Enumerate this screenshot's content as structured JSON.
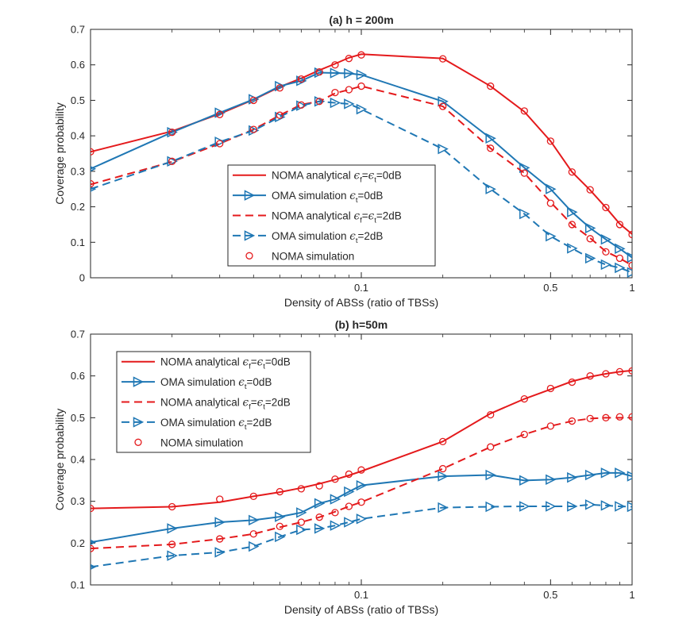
{
  "chart_data": [
    {
      "type": "line",
      "title": "(a) h = 200m",
      "xlabel": "Density of ABSs (ratio of TBSs)",
      "ylabel": "Coverage probability",
      "xscale": "log",
      "xlim": [
        0.01,
        1
      ],
      "ylim": [
        0,
        0.7
      ],
      "xticks": [
        0.1,
        0.5,
        1
      ],
      "xtick_labels": [
        "0.1",
        "0.5",
        "1"
      ],
      "yticks": [
        0,
        0.1,
        0.2,
        0.3,
        0.4,
        0.5,
        0.6,
        0.7
      ],
      "ytick_labels": [
        "0",
        "0.1",
        "0.2",
        "0.3",
        "0.4",
        "0.5",
        "0.6",
        "0.7"
      ],
      "legend_position": "center-right",
      "series": [
        {
          "name": "NOMA analytical",
          "legend_label": "NOMA analytical ϵ_f=ϵ_t=0dB",
          "legend_main": "NOMA analytical ",
          "legend_tail": "=0dB",
          "legend_sub1": "f",
          "legend_sub2": "t",
          "color": "#e41a1c",
          "style": "solid",
          "marker": "none",
          "x": [
            0.01,
            0.02,
            0.03,
            0.04,
            0.05,
            0.06,
            0.07,
            0.08,
            0.09,
            0.1,
            0.2,
            0.3,
            0.4,
            0.5,
            0.6,
            0.7,
            0.8,
            0.9,
            1.0
          ],
          "y": [
            0.355,
            0.413,
            0.462,
            0.502,
            0.538,
            0.562,
            0.585,
            0.603,
            0.62,
            0.63,
            0.618,
            0.54,
            0.468,
            0.385,
            0.298,
            0.247,
            0.198,
            0.152,
            0.123
          ]
        },
        {
          "name": "OMA simulation 0dB",
          "legend_label": "OMA simulation ϵ_t=0dB",
          "legend_main": "OMA simulation ",
          "legend_tail": "=0dB",
          "legend_sub1": "t",
          "color": "#1f77b4",
          "style": "solid",
          "marker": "triangle-right",
          "x": [
            0.01,
            0.02,
            0.03,
            0.04,
            0.05,
            0.06,
            0.07,
            0.08,
            0.09,
            0.1,
            0.2,
            0.3,
            0.4,
            0.5,
            0.6,
            0.7,
            0.8,
            0.9,
            1.0
          ],
          "y": [
            0.307,
            0.41,
            0.465,
            0.503,
            0.54,
            0.555,
            0.578,
            0.577,
            0.576,
            0.572,
            0.497,
            0.393,
            0.31,
            0.25,
            0.185,
            0.14,
            0.108,
            0.082,
            0.057
          ]
        },
        {
          "name": "NOMA analytical 2dB",
          "legend_label": "NOMA analytical ϵ_f=ϵ_t=2dB",
          "legend_main": "NOMA analytical ",
          "legend_tail": "=2dB",
          "legend_sub1": "f",
          "legend_sub2": "t",
          "color": "#e41a1c",
          "style": "dashed",
          "marker": "none",
          "x": [
            0.01,
            0.02,
            0.03,
            0.04,
            0.05,
            0.06,
            0.07,
            0.08,
            0.09,
            0.1,
            0.2,
            0.3,
            0.4,
            0.5,
            0.6,
            0.7,
            0.8,
            0.9,
            1.0
          ],
          "y": [
            0.263,
            0.327,
            0.378,
            0.418,
            0.458,
            0.488,
            0.497,
            0.52,
            0.53,
            0.54,
            0.483,
            0.365,
            0.295,
            0.213,
            0.15,
            0.112,
            0.074,
            0.055,
            0.035
          ]
        },
        {
          "name": "OMA simulation 2dB",
          "legend_label": "OMA simulation ϵ_t=2dB",
          "legend_main": "OMA simulation ",
          "legend_tail": "=2dB",
          "legend_sub1": "t",
          "color": "#1f77b4",
          "style": "dashed",
          "marker": "triangle-right",
          "x": [
            0.01,
            0.02,
            0.03,
            0.04,
            0.05,
            0.06,
            0.07,
            0.08,
            0.09,
            0.1,
            0.2,
            0.3,
            0.4,
            0.5,
            0.6,
            0.7,
            0.8,
            0.9,
            1.0
          ],
          "y": [
            0.25,
            0.328,
            0.383,
            0.415,
            0.453,
            0.485,
            0.497,
            0.493,
            0.49,
            0.475,
            0.363,
            0.25,
            0.18,
            0.117,
            0.083,
            0.055,
            0.037,
            0.028,
            0.015
          ]
        },
        {
          "name": "NOMA simulation",
          "legend_label": "NOMA simulation",
          "legend_main": "NOMA simulation",
          "legend_tail": "",
          "color": "#e41a1c",
          "style": "none",
          "marker": "circle",
          "x": [
            0.01,
            0.02,
            0.03,
            0.04,
            0.05,
            0.06,
            0.07,
            0.08,
            0.09,
            0.1,
            0.2,
            0.3,
            0.4,
            0.5,
            0.6,
            0.7,
            0.8,
            0.9,
            1.0,
            0.01,
            0.02,
            0.03,
            0.04,
            0.05,
            0.06,
            0.07,
            0.08,
            0.09,
            0.1,
            0.2,
            0.3,
            0.4,
            0.5,
            0.6,
            0.7,
            0.8,
            0.9,
            1.0
          ],
          "y": [
            0.355,
            0.41,
            0.46,
            0.5,
            0.535,
            0.56,
            0.58,
            0.6,
            0.618,
            0.628,
            0.617,
            0.54,
            0.47,
            0.385,
            0.298,
            0.248,
            0.198,
            0.15,
            0.122,
            0.265,
            0.328,
            0.378,
            0.418,
            0.458,
            0.487,
            0.497,
            0.522,
            0.53,
            0.54,
            0.483,
            0.365,
            0.295,
            0.21,
            0.15,
            0.11,
            0.073,
            0.055,
            0.035
          ]
        }
      ]
    },
    {
      "type": "line",
      "title": "(b) h=50m",
      "xlabel": "Density of ABSs (ratio of TBSs)",
      "ylabel": "Coverage probability",
      "xscale": "log",
      "xlim": [
        0.01,
        1
      ],
      "ylim": [
        0.1,
        0.7
      ],
      "xticks": [
        0.1,
        0.5,
        1
      ],
      "xtick_labels": [
        "0.1",
        "0.5",
        "1"
      ],
      "yticks": [
        0.1,
        0.2,
        0.3,
        0.4,
        0.5,
        0.6,
        0.7
      ],
      "ytick_labels": [
        "0.1",
        "0.2",
        "0.3",
        "0.4",
        "0.5",
        "0.6",
        "0.7"
      ],
      "legend_position": "top-left",
      "series": [
        {
          "name": "NOMA analytical",
          "legend_label": "NOMA analytical ϵ_f=ϵ_t=0dB",
          "legend_main": "NOMA analytical ",
          "legend_tail": "=0dB",
          "legend_sub1": "f",
          "legend_sub2": "t",
          "color": "#e41a1c",
          "style": "solid",
          "marker": "none",
          "x": [
            0.01,
            0.02,
            0.03,
            0.04,
            0.05,
            0.06,
            0.07,
            0.08,
            0.09,
            0.1,
            0.2,
            0.3,
            0.4,
            0.5,
            0.6,
            0.7,
            0.8,
            0.9,
            1.0
          ],
          "y": [
            0.283,
            0.287,
            0.298,
            0.312,
            0.322,
            0.332,
            0.342,
            0.352,
            0.362,
            0.372,
            0.443,
            0.51,
            0.545,
            0.568,
            0.587,
            0.598,
            0.605,
            0.61,
            0.613
          ]
        },
        {
          "name": "OMA simulation 0dB",
          "legend_label": "OMA simulation ϵ_t=0dB",
          "legend_main": "OMA simulation ",
          "legend_tail": "=0dB",
          "legend_sub1": "t",
          "color": "#1f77b4",
          "style": "solid",
          "marker": "triangle-right",
          "x": [
            0.01,
            0.02,
            0.03,
            0.04,
            0.05,
            0.06,
            0.07,
            0.08,
            0.09,
            0.1,
            0.2,
            0.3,
            0.4,
            0.5,
            0.6,
            0.7,
            0.8,
            0.9,
            1.0
          ],
          "y": [
            0.202,
            0.235,
            0.25,
            0.255,
            0.263,
            0.273,
            0.295,
            0.305,
            0.323,
            0.338,
            0.36,
            0.363,
            0.35,
            0.352,
            0.357,
            0.363,
            0.368,
            0.368,
            0.36
          ]
        },
        {
          "name": "NOMA analytical 2dB",
          "legend_label": "NOMA analytical ϵ_f=ϵ_t=2dB",
          "legend_main": "NOMA analytical ",
          "legend_tail": "=2dB",
          "legend_sub1": "f",
          "legend_sub2": "t",
          "color": "#e41a1c",
          "style": "dashed",
          "marker": "none",
          "x": [
            0.01,
            0.02,
            0.03,
            0.04,
            0.05,
            0.06,
            0.07,
            0.08,
            0.09,
            0.1,
            0.2,
            0.3,
            0.4,
            0.5,
            0.6,
            0.7,
            0.8,
            0.9,
            1.0
          ],
          "y": [
            0.187,
            0.197,
            0.21,
            0.222,
            0.238,
            0.25,
            0.262,
            0.275,
            0.288,
            0.298,
            0.378,
            0.43,
            0.46,
            0.48,
            0.492,
            0.498,
            0.5,
            0.5,
            0.5
          ]
        },
        {
          "name": "OMA simulation 2dB",
          "legend_label": "OMA simulation ϵ_t=2dB",
          "legend_main": "OMA simulation ",
          "legend_tail": "=2dB",
          "legend_sub1": "t",
          "color": "#1f77b4",
          "style": "dashed",
          "marker": "triangle-right",
          "x": [
            0.01,
            0.02,
            0.03,
            0.04,
            0.05,
            0.06,
            0.07,
            0.08,
            0.09,
            0.1,
            0.2,
            0.3,
            0.4,
            0.5,
            0.6,
            0.7,
            0.8,
            0.9,
            1.0
          ],
          "y": [
            0.143,
            0.17,
            0.178,
            0.192,
            0.215,
            0.232,
            0.235,
            0.242,
            0.25,
            0.258,
            0.285,
            0.287,
            0.288,
            0.288,
            0.288,
            0.292,
            0.29,
            0.288,
            0.287
          ]
        },
        {
          "name": "NOMA simulation",
          "legend_label": "NOMA simulation",
          "legend_main": "NOMA simulation",
          "legend_tail": "",
          "color": "#e41a1c",
          "style": "none",
          "marker": "circle",
          "x": [
            0.01,
            0.02,
            0.03,
            0.04,
            0.05,
            0.06,
            0.07,
            0.08,
            0.09,
            0.1,
            0.2,
            0.3,
            0.4,
            0.5,
            0.6,
            0.7,
            0.8,
            0.9,
            1.0,
            0.01,
            0.02,
            0.03,
            0.04,
            0.05,
            0.06,
            0.07,
            0.08,
            0.09,
            0.1,
            0.2,
            0.3,
            0.4,
            0.5,
            0.6,
            0.7,
            0.8,
            0.9,
            1.0
          ],
          "y": [
            0.283,
            0.287,
            0.305,
            0.312,
            0.323,
            0.33,
            0.337,
            0.353,
            0.365,
            0.375,
            0.443,
            0.507,
            0.545,
            0.57,
            0.585,
            0.6,
            0.605,
            0.61,
            0.612,
            0.187,
            0.197,
            0.21,
            0.222,
            0.24,
            0.25,
            0.262,
            0.273,
            0.288,
            0.298,
            0.378,
            0.43,
            0.46,
            0.48,
            0.492,
            0.498,
            0.5,
            0.502,
            0.502
          ]
        }
      ]
    }
  ]
}
